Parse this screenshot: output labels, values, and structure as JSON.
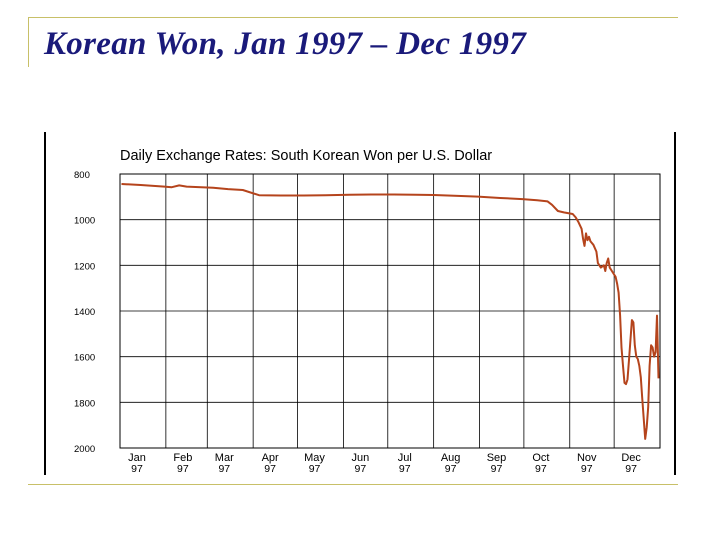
{
  "slide": {
    "title": "Korean Won, Jan 1997 – Dec 1997"
  },
  "colors": {
    "title": "#1a1a7a",
    "accent_line": "#c8c068",
    "series": "#b5441c"
  },
  "chart_data": {
    "type": "line",
    "title": "Daily Exchange Rates: South Korean Won per U.S. Dollar",
    "xlabel": "",
    "ylabel": "",
    "y_reversed": true,
    "ylim": [
      800,
      2000
    ],
    "yticks": [
      800,
      1000,
      1200,
      1400,
      1600,
      1800,
      2000
    ],
    "ytick_labels": [
      "800",
      "1000",
      "1200",
      "1400",
      "1600",
      "1800",
      "2000"
    ],
    "xlim": [
      "1997-01-01",
      "1998-01-01"
    ],
    "xticks": [
      {
        "month": "Jan",
        "year": "97"
      },
      {
        "month": "Feb",
        "year": "97"
      },
      {
        "month": "Mar",
        "year": "97"
      },
      {
        "month": "Apr",
        "year": "97"
      },
      {
        "month": "May",
        "year": "97"
      },
      {
        "month": "Jun",
        "year": "97"
      },
      {
        "month": "Jul",
        "year": "97"
      },
      {
        "month": "Aug",
        "year": "97"
      },
      {
        "month": "Sep",
        "year": "97"
      },
      {
        "month": "Oct",
        "year": "97"
      },
      {
        "month": "Nov",
        "year": "97"
      },
      {
        "month": "Dec",
        "year": "97"
      }
    ],
    "grid": true,
    "series": [
      {
        "color": "#b5441c",
        "points": [
          [
            "1997-01-02",
            844
          ],
          [
            "1997-01-15",
            848
          ],
          [
            "1997-01-31",
            855
          ],
          [
            "1997-02-05",
            858
          ],
          [
            "1997-02-10",
            850
          ],
          [
            "1997-02-15",
            855
          ],
          [
            "1997-02-25",
            858
          ],
          [
            "1997-03-05",
            860
          ],
          [
            "1997-03-15",
            866
          ],
          [
            "1997-03-25",
            870
          ],
          [
            "1997-04-05",
            893
          ],
          [
            "1997-04-20",
            894
          ],
          [
            "1997-05-05",
            894
          ],
          [
            "1997-05-20",
            893
          ],
          [
            "1997-06-05",
            891
          ],
          [
            "1997-06-20",
            890
          ],
          [
            "1997-07-05",
            890
          ],
          [
            "1997-07-20",
            891
          ],
          [
            "1997-08-01",
            892
          ],
          [
            "1997-08-15",
            895
          ],
          [
            "1997-08-31",
            899
          ],
          [
            "1997-09-15",
            905
          ],
          [
            "1997-09-30",
            910
          ],
          [
            "1997-10-10",
            915
          ],
          [
            "1997-10-17",
            920
          ],
          [
            "1997-10-20",
            935
          ],
          [
            "1997-10-24",
            962
          ],
          [
            "1997-10-28",
            968
          ],
          [
            "1997-11-03",
            975
          ],
          [
            "1997-11-05",
            990
          ],
          [
            "1997-11-07",
            1012
          ],
          [
            "1997-11-09",
            1040
          ],
          [
            "1997-11-10",
            1085
          ],
          [
            "1997-11-11",
            1115
          ],
          [
            "1997-11-12",
            1060
          ],
          [
            "1997-11-13",
            1090
          ],
          [
            "1997-11-14",
            1075
          ],
          [
            "1997-11-15",
            1095
          ],
          [
            "1997-11-17",
            1110
          ],
          [
            "1997-11-19",
            1140
          ],
          [
            "1997-11-20",
            1190
          ],
          [
            "1997-11-22",
            1210
          ],
          [
            "1997-11-24",
            1200
          ],
          [
            "1997-11-25",
            1225
          ],
          [
            "1997-11-26",
            1190
          ],
          [
            "1997-11-27",
            1170
          ],
          [
            "1997-11-28",
            1210
          ],
          [
            "1997-12-01",
            1240
          ],
          [
            "1997-12-02",
            1250
          ],
          [
            "1997-12-03",
            1280
          ],
          [
            "1997-12-04",
            1320
          ],
          [
            "1997-12-05",
            1420
          ],
          [
            "1997-12-06",
            1560
          ],
          [
            "1997-12-07",
            1640
          ],
          [
            "1997-12-08",
            1715
          ],
          [
            "1997-12-09",
            1720
          ],
          [
            "1997-12-10",
            1700
          ],
          [
            "1997-12-11",
            1620
          ],
          [
            "1997-12-12",
            1530
          ],
          [
            "1997-12-13",
            1440
          ],
          [
            "1997-12-14",
            1450
          ],
          [
            "1997-12-15",
            1550
          ],
          [
            "1997-12-16",
            1600
          ],
          [
            "1997-12-17",
            1610
          ],
          [
            "1997-12-18",
            1640
          ],
          [
            "1997-12-19",
            1690
          ],
          [
            "1997-12-20",
            1780
          ],
          [
            "1997-12-22",
            1960
          ],
          [
            "1997-12-23",
            1910
          ],
          [
            "1997-12-24",
            1820
          ],
          [
            "1997-12-25",
            1640
          ],
          [
            "1997-12-26",
            1550
          ],
          [
            "1997-12-27",
            1560
          ],
          [
            "1997-12-28",
            1600
          ],
          [
            "1997-12-29",
            1580
          ],
          [
            "1997-12-30",
            1420
          ],
          [
            "1997-12-31",
            1695
          ]
        ]
      }
    ]
  }
}
